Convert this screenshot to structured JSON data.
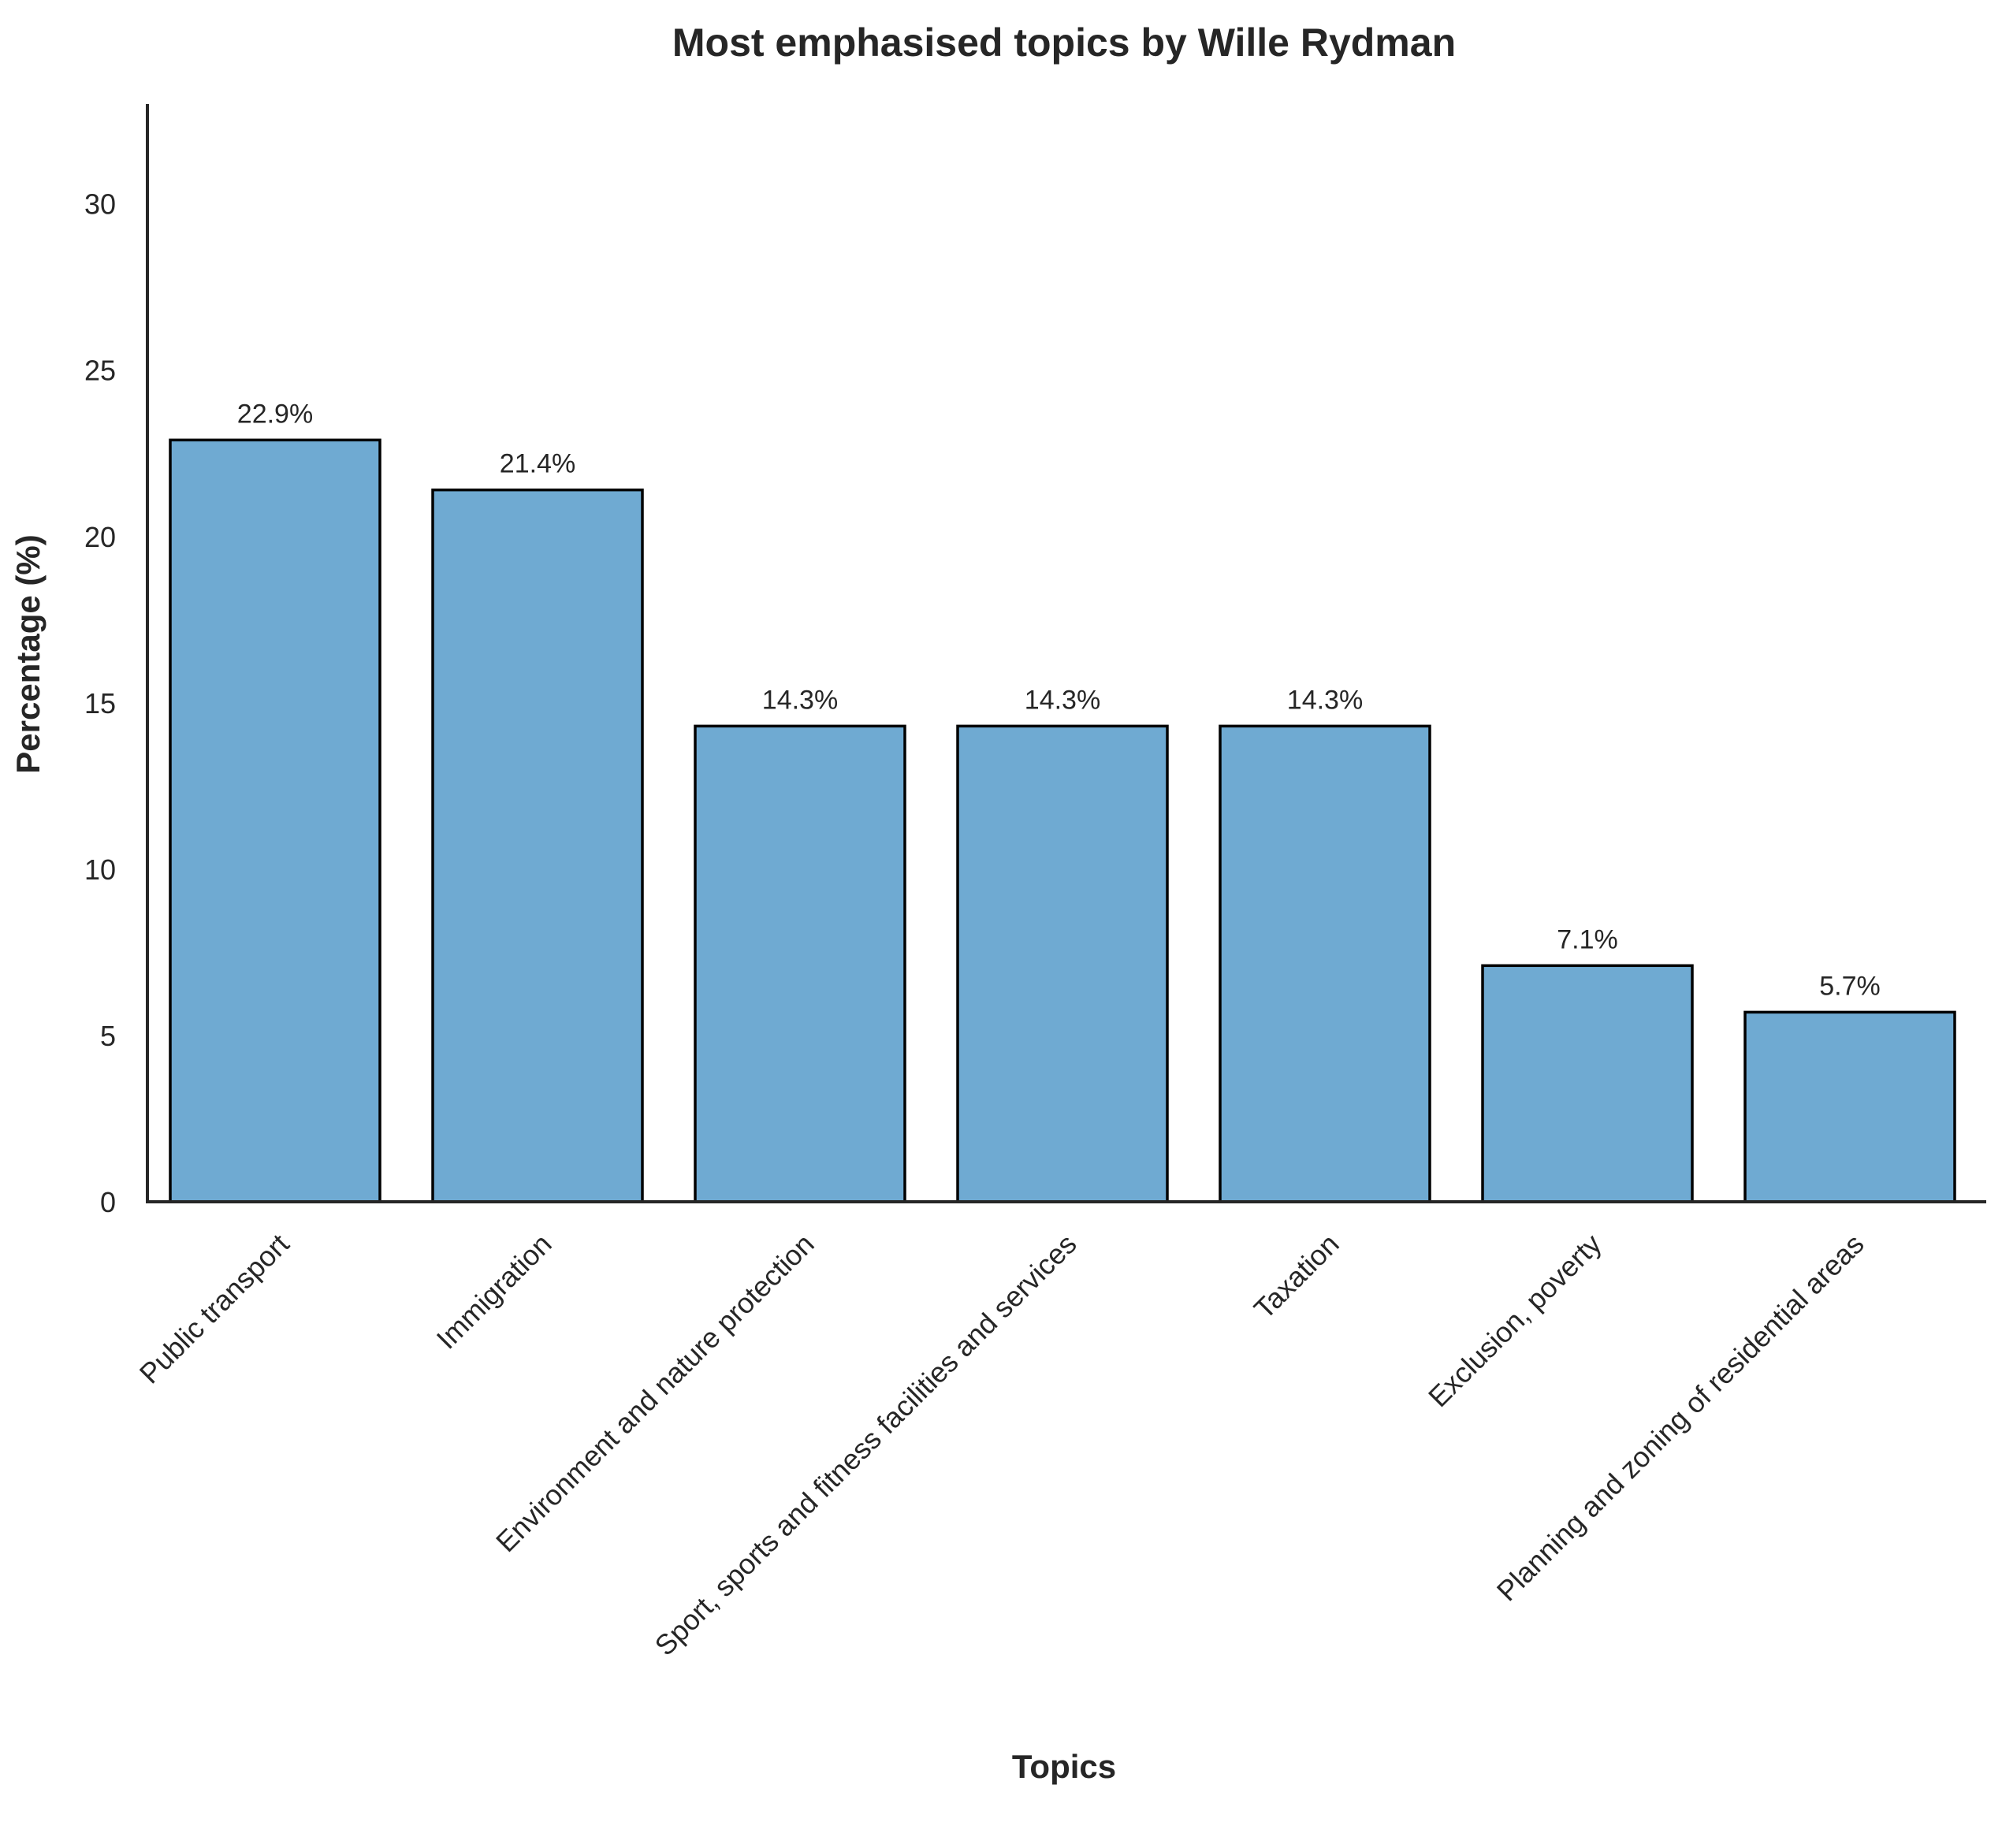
{
  "chart_data": {
    "type": "bar",
    "title": "Most emphasised topics by Wille Rydman",
    "xlabel": "Topics",
    "ylabel": "Percentage (%)",
    "categories": [
      "Public transport",
      "Immigration",
      "Environment and nature protection",
      "Sport, sports and fitness facilities and services",
      "Taxation",
      "Exclusion, poverty",
      "Planning and zoning of residential areas"
    ],
    "values": [
      22.9,
      21.4,
      14.3,
      14.3,
      14.3,
      7.1,
      5.7
    ],
    "data_labels": [
      "22.9%",
      "21.4%",
      "14.3%",
      "14.3%",
      "14.3%",
      "7.1%",
      "5.7%"
    ],
    "yticks": [
      0,
      5,
      10,
      15,
      20,
      25,
      30
    ],
    "ylim": [
      0,
      33
    ],
    "grid": false,
    "legend": "none",
    "colors": {
      "bar_fill": "#6faad2",
      "bar_edge": "#000000",
      "axis": "#262626"
    }
  }
}
